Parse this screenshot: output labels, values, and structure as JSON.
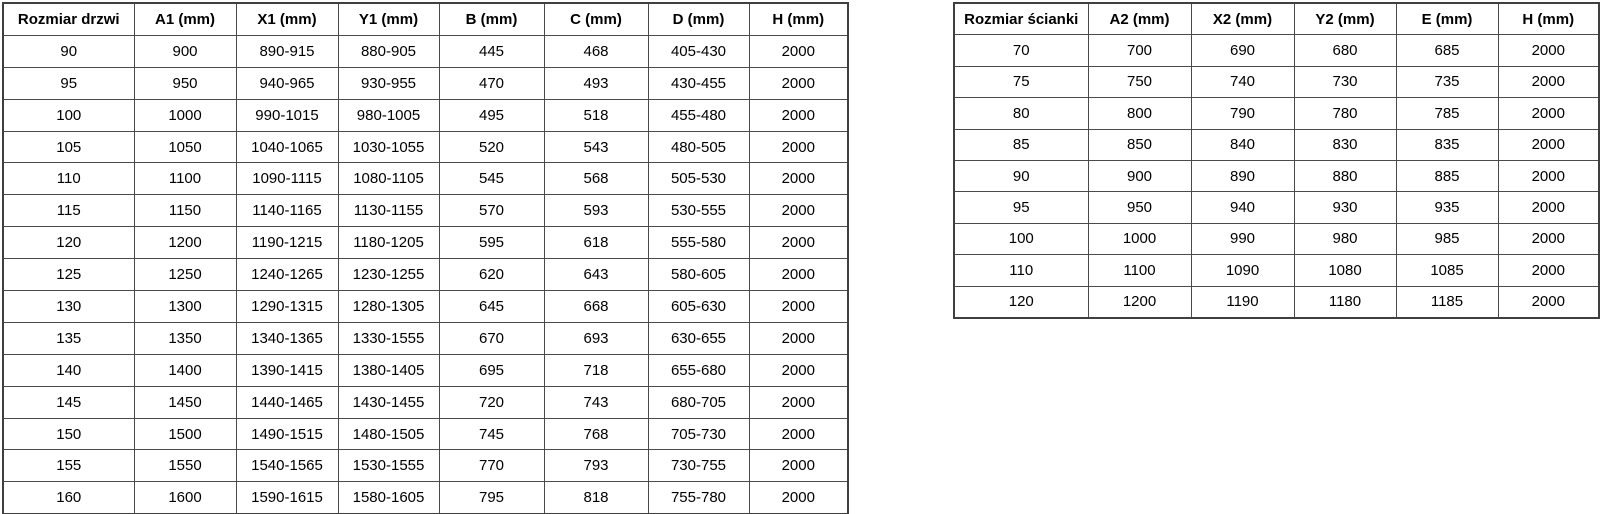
{
  "colors": {
    "background": "#ffffff",
    "border": "#4a4a4a",
    "text": "#000000"
  },
  "tables": [
    {
      "id": "door-sizes",
      "headers": [
        "Rozmiar drzwi",
        "A1 (mm)",
        "X1 (mm)",
        "Y1 (mm)",
        "B (mm)",
        "C (mm)",
        "D (mm)",
        "H (mm)"
      ],
      "rows": [
        [
          "90",
          "900",
          "890-915",
          "880-905",
          "445",
          "468",
          "405-430",
          "2000"
        ],
        [
          "95",
          "950",
          "940-965",
          "930-955",
          "470",
          "493",
          "430-455",
          "2000"
        ],
        [
          "100",
          "1000",
          "990-1015",
          "980-1005",
          "495",
          "518",
          "455-480",
          "2000"
        ],
        [
          "105",
          "1050",
          "1040-1065",
          "1030-1055",
          "520",
          "543",
          "480-505",
          "2000"
        ],
        [
          "110",
          "1100",
          "1090-1115",
          "1080-1105",
          "545",
          "568",
          "505-530",
          "2000"
        ],
        [
          "115",
          "1150",
          "1140-1165",
          "1130-1155",
          "570",
          "593",
          "530-555",
          "2000"
        ],
        [
          "120",
          "1200",
          "1190-1215",
          "1180-1205",
          "595",
          "618",
          "555-580",
          "2000"
        ],
        [
          "125",
          "1250",
          "1240-1265",
          "1230-1255",
          "620",
          "643",
          "580-605",
          "2000"
        ],
        [
          "130",
          "1300",
          "1290-1315",
          "1280-1305",
          "645",
          "668",
          "605-630",
          "2000"
        ],
        [
          "135",
          "1350",
          "1340-1365",
          "1330-1555",
          "670",
          "693",
          "630-655",
          "2000"
        ],
        [
          "140",
          "1400",
          "1390-1415",
          "1380-1405",
          "695",
          "718",
          "655-680",
          "2000"
        ],
        [
          "145",
          "1450",
          "1440-1465",
          "1430-1455",
          "720",
          "743",
          "680-705",
          "2000"
        ],
        [
          "150",
          "1500",
          "1490-1515",
          "1480-1505",
          "745",
          "768",
          "705-730",
          "2000"
        ],
        [
          "155",
          "1550",
          "1540-1565",
          "1530-1555",
          "770",
          "793",
          "730-755",
          "2000"
        ],
        [
          "160",
          "1600",
          "1590-1615",
          "1580-1605",
          "795",
          "818",
          "755-780",
          "2000"
        ]
      ]
    },
    {
      "id": "wall-sizes",
      "headers": [
        "Rozmiar ścianki",
        "A2 (mm)",
        "X2 (mm)",
        "Y2 (mm)",
        "E (mm)",
        "H (mm)"
      ],
      "rows": [
        [
          "70",
          "700",
          "690",
          "680",
          "685",
          "2000"
        ],
        [
          "75",
          "750",
          "740",
          "730",
          "735",
          "2000"
        ],
        [
          "80",
          "800",
          "790",
          "780",
          "785",
          "2000"
        ],
        [
          "85",
          "850",
          "840",
          "830",
          "835",
          "2000"
        ],
        [
          "90",
          "900",
          "890",
          "880",
          "885",
          "2000"
        ],
        [
          "95",
          "950",
          "940",
          "930",
          "935",
          "2000"
        ],
        [
          "100",
          "1000",
          "990",
          "980",
          "985",
          "2000"
        ],
        [
          "110",
          "1100",
          "1090",
          "1080",
          "1085",
          "2000"
        ],
        [
          "120",
          "1200",
          "1190",
          "1180",
          "1185",
          "2000"
        ]
      ]
    }
  ]
}
